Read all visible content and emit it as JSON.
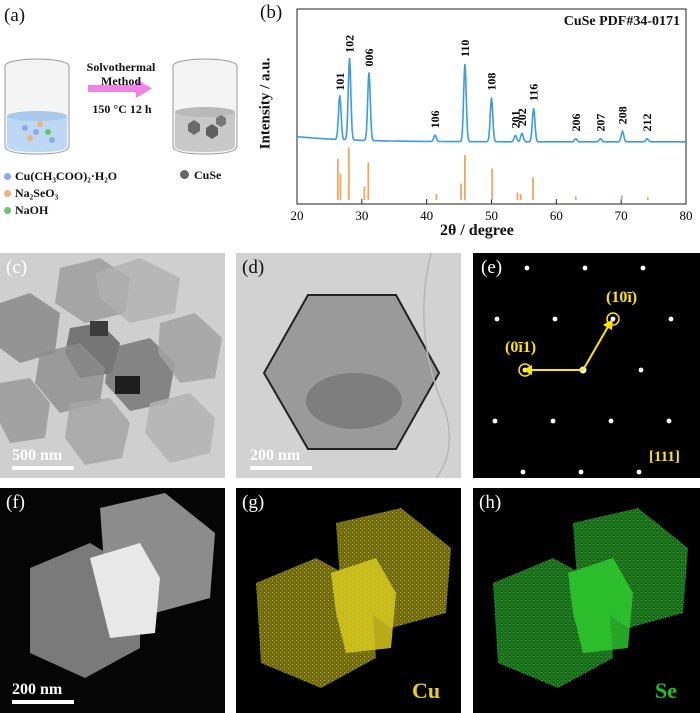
{
  "panel_a": {
    "label": "(a)",
    "method_line1": "Solvothermal",
    "method_line2": "Method",
    "condition": "150 °C 12 h",
    "legend": [
      {
        "name": "Cu(CH₃COO)₂·H₂O",
        "color": "#8fa8e6"
      },
      {
        "name": "Na₂SeO₃",
        "color": "#f0b27a"
      },
      {
        "name": "NaOH",
        "color": "#6cc36c"
      }
    ],
    "product": {
      "name": "CuSe",
      "color": "#666666"
    }
  },
  "panel_b": {
    "label": "(b)",
    "reference": "CuSe PDF#34-0171"
  },
  "chart_data": {
    "type": "line",
    "xlabel": "2θ / degree",
    "ylabel": "Intensity / a.u.",
    "xlim": [
      20,
      80
    ],
    "xticks": [
      20,
      30,
      40,
      50,
      60,
      70,
      80
    ],
    "grid": false,
    "series_color": "#3b9bea",
    "reference_color": "#f2a65e",
    "peaks": [
      {
        "hkl": "101",
        "x": 26.6,
        "y": 42
      },
      {
        "hkl": "102",
        "x": 28.1,
        "y": 78
      },
      {
        "hkl": "006",
        "x": 31.1,
        "y": 65
      },
      {
        "hkl": "106",
        "x": 41.3,
        "y": 6
      },
      {
        "hkl": "110",
        "x": 45.9,
        "y": 74
      },
      {
        "hkl": "108",
        "x": 50.0,
        "y": 42
      },
      {
        "hkl": "201",
        "x": 53.7,
        "y": 6
      },
      {
        "hkl": "202",
        "x": 54.7,
        "y": 8
      },
      {
        "hkl": "116",
        "x": 56.5,
        "y": 32
      },
      {
        "hkl": "206",
        "x": 63.0,
        "y": 3
      },
      {
        "hkl": "207",
        "x": 66.8,
        "y": 3
      },
      {
        "hkl": "208",
        "x": 70.2,
        "y": 10
      },
      {
        "hkl": "212",
        "x": 74.0,
        "y": 3
      }
    ],
    "reference_lines": [
      {
        "x": 26.3,
        "h": 55
      },
      {
        "x": 26.7,
        "h": 35
      },
      {
        "x": 28.0,
        "h": 70
      },
      {
        "x": 30.4,
        "h": 18
      },
      {
        "x": 31.0,
        "h": 50
      },
      {
        "x": 41.5,
        "h": 8
      },
      {
        "x": 45.3,
        "h": 22
      },
      {
        "x": 45.9,
        "h": 60
      },
      {
        "x": 50.1,
        "h": 42
      },
      {
        "x": 54.0,
        "h": 10
      },
      {
        "x": 54.5,
        "h": 8
      },
      {
        "x": 56.4,
        "h": 30
      },
      {
        "x": 63.0,
        "h": 5
      },
      {
        "x": 70.1,
        "h": 6
      },
      {
        "x": 74.1,
        "h": 4
      }
    ]
  },
  "panel_c": {
    "label": "(c)",
    "scale": "500 nm"
  },
  "panel_d": {
    "label": "(d)",
    "scale": "200 nm"
  },
  "panel_e": {
    "label": "(e)",
    "spot1": "(10ī)",
    "spot2": "(0ī1)",
    "zone": "[111]"
  },
  "panel_f": {
    "label": "(f)",
    "scale": "200 nm"
  },
  "panel_g": {
    "label": "(g)",
    "element": "Cu",
    "color": "#e6d21a"
  },
  "panel_h": {
    "label": "(h)",
    "element": "Se",
    "color": "#22c022"
  }
}
